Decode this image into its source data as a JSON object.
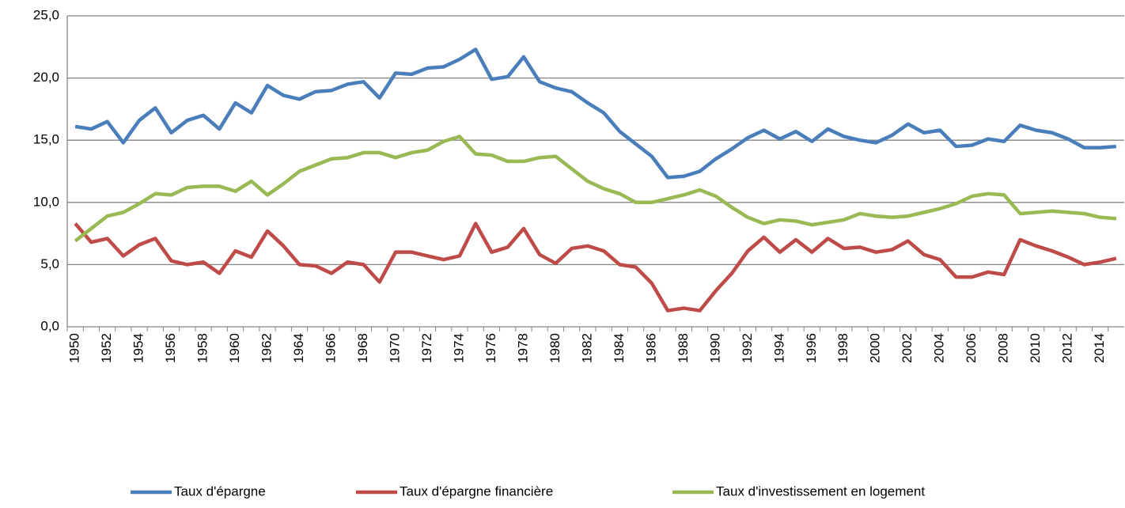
{
  "chart_data": {
    "type": "line",
    "categories": [
      "1950",
      null,
      "1952",
      null,
      "1954",
      null,
      "1956",
      null,
      "1958",
      null,
      "1960",
      null,
      "1962",
      null,
      "1964",
      null,
      "1966",
      null,
      "1968",
      null,
      "1970",
      null,
      "1972",
      null,
      "1974",
      null,
      "1976",
      null,
      "1978",
      null,
      "1980",
      null,
      "1982",
      null,
      "1984",
      null,
      "1986",
      null,
      "1988",
      null,
      "1990",
      null,
      "1992",
      null,
      "1994",
      null,
      "1996",
      null,
      "1998",
      null,
      "2000",
      null,
      "2002",
      null,
      "2004",
      null,
      "2006",
      null,
      "2008",
      null,
      "2010",
      null,
      "2012",
      null,
      "2014",
      null
    ],
    "series": [
      {
        "name": "Taux d'épargne",
        "color": "#4a7ebb",
        "values": [
          16.1,
          15.9,
          16.5,
          14.8,
          16.6,
          17.6,
          15.6,
          16.6,
          17.0,
          15.9,
          18.0,
          17.2,
          19.4,
          18.6,
          18.3,
          18.9,
          19.0,
          19.5,
          19.7,
          18.4,
          20.4,
          20.3,
          20.8,
          20.9,
          21.5,
          22.3,
          19.9,
          20.1,
          21.7,
          19.7,
          19.2,
          18.9,
          18.0,
          17.2,
          15.7,
          14.7,
          13.7,
          12.0,
          12.1,
          12.5,
          13.5,
          14.3,
          15.2,
          15.8,
          15.1,
          15.7,
          14.9,
          15.9,
          15.3,
          15.0,
          14.8,
          15.4,
          16.3,
          15.6,
          15.8,
          14.5,
          14.6,
          15.1,
          14.9,
          16.2,
          15.8,
          15.6,
          15.1,
          14.4,
          14.4,
          14.5
        ]
      },
      {
        "name": "Taux d'épargne financière",
        "color": "#be4b48",
        "values": [
          8.3,
          6.8,
          7.1,
          5.7,
          6.6,
          7.1,
          5.3,
          5.0,
          5.2,
          4.3,
          6.1,
          5.6,
          7.7,
          6.5,
          5.0,
          4.9,
          4.3,
          5.2,
          5.0,
          3.6,
          6.0,
          6.0,
          5.7,
          5.4,
          5.7,
          8.3,
          6.0,
          6.4,
          7.9,
          5.8,
          5.1,
          6.3,
          6.5,
          6.1,
          5.0,
          4.8,
          3.5,
          1.3,
          1.5,
          1.3,
          2.9,
          4.3,
          6.1,
          7.2,
          6.0,
          7.0,
          6.0,
          7.1,
          6.3,
          6.4,
          6.0,
          6.2,
          6.9,
          5.8,
          5.4,
          4.0,
          4.0,
          4.4,
          4.2,
          7.0,
          6.5,
          6.1,
          5.6,
          5.0,
          5.2,
          5.5
        ]
      },
      {
        "name": "Taux d'investissement en logement",
        "color": "#98b954",
        "values": [
          6.9,
          7.9,
          8.9,
          9.2,
          9.9,
          10.7,
          10.6,
          11.2,
          11.3,
          11.3,
          10.9,
          11.7,
          10.6,
          11.5,
          12.5,
          13.0,
          13.5,
          13.6,
          14.0,
          14.0,
          13.6,
          14.0,
          14.2,
          14.9,
          15.3,
          13.9,
          13.8,
          13.3,
          13.3,
          13.6,
          13.7,
          12.7,
          11.7,
          11.1,
          10.7,
          10.0,
          10.0,
          10.3,
          10.6,
          11.0,
          10.5,
          9.6,
          8.8,
          8.3,
          8.6,
          8.5,
          8.2,
          8.4,
          8.6,
          9.1,
          8.9,
          8.8,
          8.9,
          9.2,
          9.5,
          9.9,
          10.5,
          10.7,
          10.6,
          9.1,
          9.2,
          9.3,
          9.2,
          9.1,
          8.8,
          8.7
        ]
      }
    ],
    "ylim": [
      0,
      25
    ],
    "yticks": [
      {
        "value": 0,
        "label": "0,0"
      },
      {
        "value": 5,
        "label": "5,0"
      },
      {
        "value": 10,
        "label": "10,0"
      },
      {
        "value": 15,
        "label": "15,0"
      },
      {
        "value": 20,
        "label": "20,0"
      },
      {
        "value": 25,
        "label": "25,0"
      }
    ],
    "grid": true,
    "legend": "bottom"
  }
}
